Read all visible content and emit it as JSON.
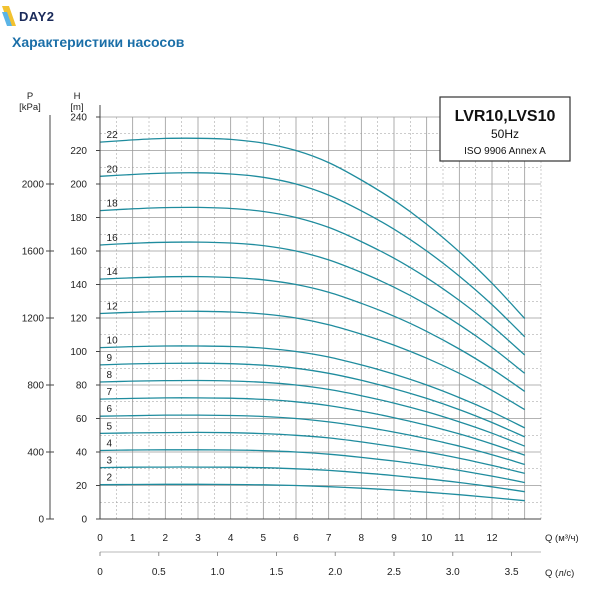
{
  "header": {
    "logo_text": "DAY2",
    "title": "Характеристики насосов",
    "colors": {
      "logo_yellow": "#f2c230",
      "logo_blue": "#5bb4e6",
      "title": "#1b6fa8",
      "curve": "#1f8c9e",
      "grid": "#9a9a9a"
    }
  },
  "chart_data": {
    "type": "line",
    "legend": {
      "model": "LVR10,LVS10",
      "freq": "50Hz",
      "standard": "ISO 9906 Annex A",
      "placement": "top-right"
    },
    "x_label": "Q (м³/ч)",
    "x2_label": "Q (л/с)",
    "y_label_pressure": "P",
    "y_unit_pressure": "[kPa]",
    "y_label_head": "H",
    "y_unit_head": "[m]",
    "xlim": [
      0,
      13.5
    ],
    "ylim": [
      0,
      240
    ],
    "x_ticks": [
      "0",
      "1",
      "2",
      "3",
      "4",
      "5",
      "6",
      "7",
      "8",
      "9",
      "10",
      "11",
      "12"
    ],
    "x2_ticks": [
      {
        "label": "0",
        "value": 0
      },
      {
        "label": "0.5",
        "value": 1.8
      },
      {
        "label": "1.0",
        "value": 3.6
      },
      {
        "label": "1.5",
        "value": 5.4
      },
      {
        "label": "2.0",
        "value": 7.2
      },
      {
        "label": "2.5",
        "value": 9.0
      },
      {
        "label": "3.0",
        "value": 10.8
      },
      {
        "label": "3.5",
        "value": 12.6
      }
    ],
    "head_ticks": [
      "0",
      "20",
      "40",
      "60",
      "80",
      "100",
      "120",
      "140",
      "160",
      "180",
      "200",
      "220",
      "240"
    ],
    "pressure_ticks": [
      {
        "label": "0",
        "head": 0
      },
      {
        "label": "400",
        "head": 40
      },
      {
        "label": "800",
        "head": 80
      },
      {
        "label": "1200",
        "head": 120
      },
      {
        "label": "1600",
        "head": 160
      },
      {
        "label": "2000",
        "head": 200
      }
    ],
    "q": [
      0,
      1,
      2,
      3,
      4,
      5,
      6,
      7,
      8,
      9,
      10,
      11,
      12,
      13
    ],
    "grid": true,
    "series": [
      {
        "name": "2",
        "values": [
          20.5,
          20.6,
          20.7,
          20.7,
          20.6,
          20.4,
          20.0,
          19.3,
          18.4,
          17.3,
          16.0,
          14.5,
          12.8,
          10.9
        ]
      },
      {
        "name": "3",
        "values": [
          30.7,
          30.9,
          31.0,
          31.0,
          30.9,
          30.6,
          30.0,
          29.0,
          27.6,
          25.9,
          24.0,
          21.8,
          19.2,
          16.3
        ]
      },
      {
        "name": "4",
        "values": [
          40.9,
          41.2,
          41.3,
          41.3,
          41.2,
          40.8,
          40.0,
          38.7,
          36.8,
          34.6,
          32.0,
          29.0,
          25.6,
          21.8
        ]
      },
      {
        "name": "5",
        "values": [
          51.1,
          51.4,
          51.6,
          51.7,
          51.5,
          51.0,
          50.0,
          48.4,
          46.0,
          43.2,
          40.0,
          36.3,
          32.0,
          27.2
        ]
      },
      {
        "name": "6",
        "values": [
          61.4,
          61.7,
          62.0,
          62.0,
          61.8,
          61.2,
          60.0,
          58.0,
          55.2,
          51.9,
          48.0,
          43.5,
          38.4,
          32.6
        ]
      },
      {
        "name": "7",
        "values": [
          71.6,
          72.0,
          72.3,
          72.3,
          72.1,
          71.4,
          70.0,
          67.7,
          64.4,
          60.5,
          56.0,
          50.8,
          44.8,
          38.1
        ]
      },
      {
        "name": "8",
        "values": [
          81.8,
          82.3,
          82.6,
          82.7,
          82.4,
          81.6,
          80.0,
          77.4,
          73.6,
          69.2,
          64.0,
          58.0,
          51.2,
          43.5
        ]
      },
      {
        "name": "9",
        "values": [
          92.0,
          92.6,
          92.9,
          93.0,
          92.7,
          91.8,
          90.0,
          87.0,
          82.8,
          77.8,
          72.0,
          65.3,
          57.6,
          49.0
        ]
      },
      {
        "name": "10",
        "values": [
          102.3,
          102.9,
          103.3,
          103.3,
          103.0,
          102.0,
          100.0,
          96.7,
          92.0,
          86.5,
          80.0,
          72.5,
          64.0,
          54.4
        ]
      },
      {
        "name": "12",
        "values": [
          122.7,
          123.4,
          123.9,
          124.0,
          123.6,
          122.4,
          120.0,
          116.0,
          110.4,
          103.8,
          96.0,
          87.0,
          76.8,
          65.3
        ]
      },
      {
        "name": "14",
        "values": [
          143.2,
          144.0,
          144.6,
          144.7,
          144.2,
          142.8,
          140.0,
          135.4,
          128.8,
          121.1,
          112.0,
          101.5,
          89.6,
          76.2
        ]
      },
      {
        "name": "16",
        "values": [
          163.6,
          164.6,
          165.2,
          165.3,
          164.8,
          163.2,
          160.0,
          154.7,
          147.2,
          138.4,
          128.0,
          116.0,
          102.4,
          87.0
        ]
      },
      {
        "name": "18",
        "values": [
          184.1,
          185.2,
          185.9,
          186.0,
          185.4,
          183.6,
          180.0,
          174.1,
          165.6,
          155.7,
          144.0,
          130.5,
          115.2,
          97.9
        ]
      },
      {
        "name": "20",
        "values": [
          204.6,
          205.7,
          206.5,
          206.7,
          206.0,
          204.0,
          200.0,
          193.4,
          184.0,
          173.0,
          160.0,
          145.0,
          128.0,
          108.8
        ]
      },
      {
        "name": "22",
        "values": [
          225.0,
          226.3,
          227.2,
          227.3,
          226.6,
          224.4,
          220.0,
          212.8,
          202.4,
          190.3,
          176.0,
          159.5,
          140.8,
          119.7
        ]
      }
    ]
  }
}
